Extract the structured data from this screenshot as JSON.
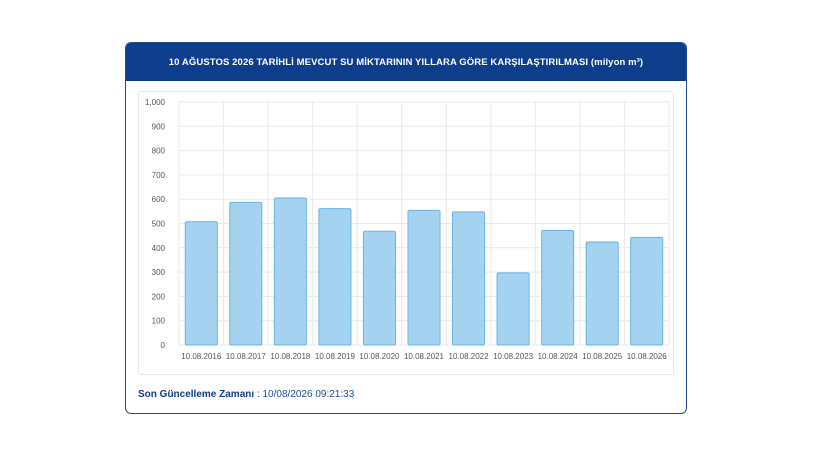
{
  "header": {
    "title": "10 AĞUSTOS 2026 TARİHLİ MEVCUT SU MİKTARININ YILLARA GÖRE KARŞILAŞTIRILMASI (milyon m³)"
  },
  "footer": {
    "label": "Son Güncelleme Zamanı",
    "separator": " : ",
    "value": "10/08/2026 09:21:33"
  },
  "colors": {
    "header_bg": "#0e3d8c",
    "bar_fill": "#a3d3f0",
    "bar_stroke": "#6bb3e0",
    "grid": "#e6e9ef"
  },
  "chart_data": {
    "type": "bar",
    "title": "10 AĞUSTOS 2026 TARİHLİ MEVCUT SU MİKTARININ YILLARA GÖRE KARŞILAŞTIRILMASI (milyon m³)",
    "categories": [
      "10.08.2016",
      "10.08.2017",
      "10.08.2018",
      "10.08.2019",
      "10.08.2020",
      "10.08.2021",
      "10.08.2022",
      "10.08.2023",
      "10.08.2024",
      "10.08.2025",
      "10.08.2026"
    ],
    "values": [
      507,
      587,
      605,
      561,
      468,
      554,
      548,
      297,
      471,
      424,
      443
    ],
    "ylim": [
      0,
      1000
    ],
    "yticks": [
      0,
      100,
      200,
      300,
      400,
      500,
      600,
      700,
      800,
      900,
      1000
    ],
    "ytick_labels": [
      "0",
      "100",
      "200",
      "300",
      "400",
      "500",
      "600",
      "700",
      "800",
      "900",
      "1,000"
    ],
    "grid": true,
    "legend": "none"
  }
}
